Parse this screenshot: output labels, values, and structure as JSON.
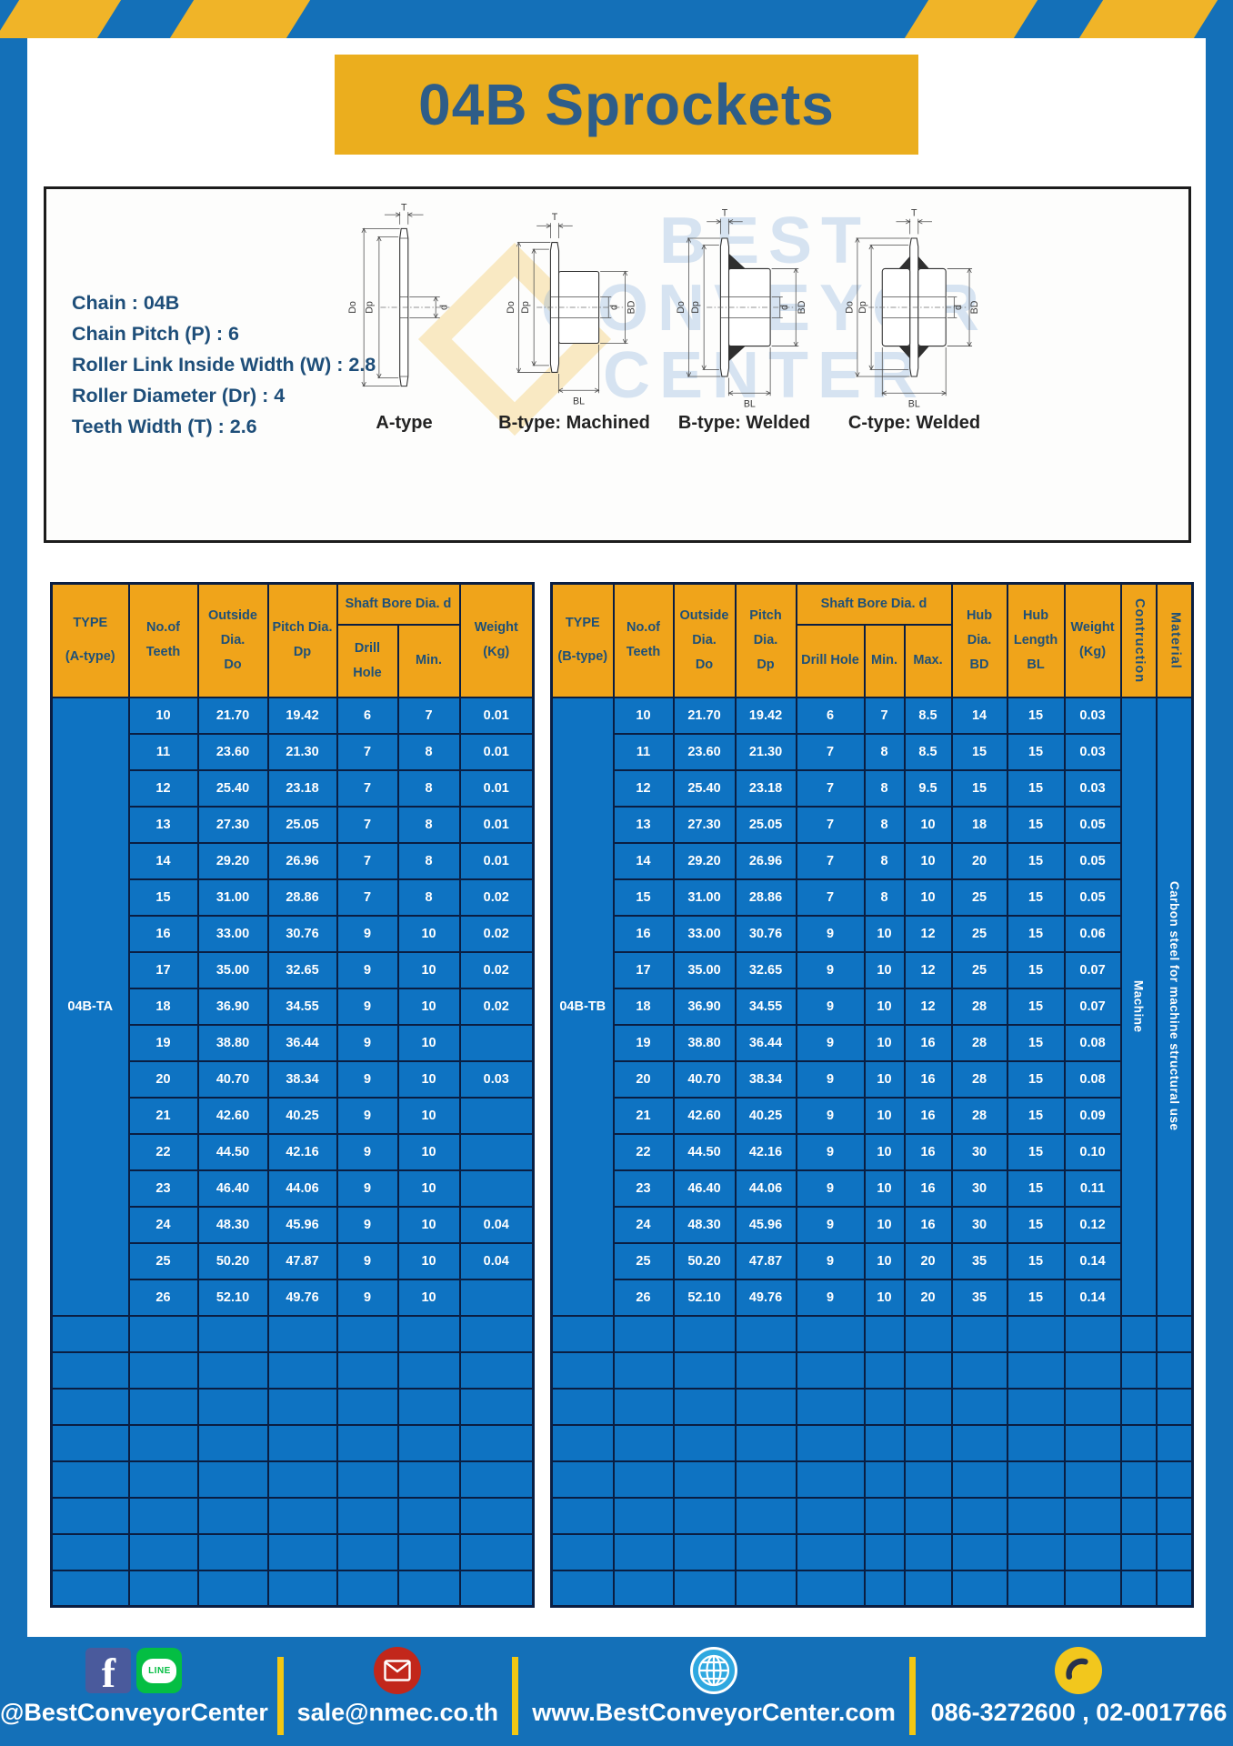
{
  "page": {
    "title": "04B Sprockets"
  },
  "specs": {
    "lines": "Chain  : 04B\nChain Pitch (P)  :  6\nRoller Link Inside Width (W)  :  2.8\nRoller Diameter (Dr)  : 4\nTeeth Width (T)  :  2.6"
  },
  "diagram": {
    "captions": {
      "a": "A-type",
      "bm": "B-type: Machined",
      "bw": "B-type: Welded",
      "cw": "C-type: Welded"
    },
    "dim_labels": {
      "t": "T",
      "do": "Do",
      "dp": "Dp",
      "d": "d",
      "bd": "BD",
      "bl": "BL"
    },
    "watermark": "BEST\nCONVEYOR\nCENTER"
  },
  "tables": {
    "a": {
      "type_header": "TYPE\n(A-type)",
      "type_value": "04B-TA",
      "headers": {
        "teeth": "No.of\nTeeth",
        "outside": "Outside\nDia.\nDo",
        "pitch": "Pitch Dia.\nDp",
        "shaft_bore": "Shaft Bore Dia. d",
        "drill": "Drill Hole",
        "min": "Min.",
        "weight": "Weight\n(Kg)"
      },
      "rows": [
        [
          "10",
          "21.70",
          "19.42",
          "6",
          "7",
          "0.01"
        ],
        [
          "11",
          "23.60",
          "21.30",
          "7",
          "8",
          "0.01"
        ],
        [
          "12",
          "25.40",
          "23.18",
          "7",
          "8",
          "0.01"
        ],
        [
          "13",
          "27.30",
          "25.05",
          "7",
          "8",
          "0.01"
        ],
        [
          "14",
          "29.20",
          "26.96",
          "7",
          "8",
          "0.01"
        ],
        [
          "15",
          "31.00",
          "28.86",
          "7",
          "8",
          "0.02"
        ],
        [
          "16",
          "33.00",
          "30.76",
          "9",
          "10",
          "0.02"
        ],
        [
          "17",
          "35.00",
          "32.65",
          "9",
          "10",
          "0.02"
        ],
        [
          "18",
          "36.90",
          "34.55",
          "9",
          "10",
          "0.02"
        ],
        [
          "19",
          "38.80",
          "36.44",
          "9",
          "10",
          ""
        ],
        [
          "20",
          "40.70",
          "38.34",
          "9",
          "10",
          "0.03"
        ],
        [
          "21",
          "42.60",
          "40.25",
          "9",
          "10",
          ""
        ],
        [
          "22",
          "44.50",
          "42.16",
          "9",
          "10",
          ""
        ],
        [
          "23",
          "46.40",
          "44.06",
          "9",
          "10",
          ""
        ],
        [
          "24",
          "48.30",
          "45.96",
          "9",
          "10",
          "0.04"
        ],
        [
          "25",
          "50.20",
          "47.87",
          "9",
          "10",
          "0.04"
        ],
        [
          "26",
          "52.10",
          "49.76",
          "9",
          "10",
          ""
        ]
      ],
      "empty_row_count": 8
    },
    "b": {
      "type_header": "TYPE\n(B-type)",
      "type_value": "04B-TB",
      "headers": {
        "teeth": "No.of\nTeeth",
        "outside": "Outside\nDia.\nDo",
        "pitch": "Pitch Dia.\nDp",
        "shaft_bore": "Shaft Bore Dia. d",
        "drill": "Drill Hole",
        "min": "Min.",
        "max": "Max.",
        "hub_dia": "Hub Dia.\nBD",
        "hub_len": "Hub\nLength\nBL",
        "weight": "Weight\n(Kg)",
        "construction": "Contruction",
        "material": "Material"
      },
      "construction_value": "Machine",
      "material_value": "Carbon steel for machine structural use",
      "rows": [
        [
          "10",
          "21.70",
          "19.42",
          "6",
          "7",
          "8.5",
          "14",
          "15",
          "0.03"
        ],
        [
          "11",
          "23.60",
          "21.30",
          "7",
          "8",
          "8.5",
          "15",
          "15",
          "0.03"
        ],
        [
          "12",
          "25.40",
          "23.18",
          "7",
          "8",
          "9.5",
          "15",
          "15",
          "0.03"
        ],
        [
          "13",
          "27.30",
          "25.05",
          "7",
          "8",
          "10",
          "18",
          "15",
          "0.05"
        ],
        [
          "14",
          "29.20",
          "26.96",
          "7",
          "8",
          "10",
          "20",
          "15",
          "0.05"
        ],
        [
          "15",
          "31.00",
          "28.86",
          "7",
          "8",
          "10",
          "25",
          "15",
          "0.05"
        ],
        [
          "16",
          "33.00",
          "30.76",
          "9",
          "10",
          "12",
          "25",
          "15",
          "0.06"
        ],
        [
          "17",
          "35.00",
          "32.65",
          "9",
          "10",
          "12",
          "25",
          "15",
          "0.07"
        ],
        [
          "18",
          "36.90",
          "34.55",
          "9",
          "10",
          "12",
          "28",
          "15",
          "0.07"
        ],
        [
          "19",
          "38.80",
          "36.44",
          "9",
          "10",
          "16",
          "28",
          "15",
          "0.08"
        ],
        [
          "20",
          "40.70",
          "38.34",
          "9",
          "10",
          "16",
          "28",
          "15",
          "0.08"
        ],
        [
          "21",
          "42.60",
          "40.25",
          "9",
          "10",
          "16",
          "28",
          "15",
          "0.09"
        ],
        [
          "22",
          "44.50",
          "42.16",
          "9",
          "10",
          "16",
          "30",
          "15",
          "0.10"
        ],
        [
          "23",
          "46.40",
          "44.06",
          "9",
          "10",
          "16",
          "30",
          "15",
          "0.11"
        ],
        [
          "24",
          "48.30",
          "45.96",
          "9",
          "10",
          "16",
          "30",
          "15",
          "0.12"
        ],
        [
          "25",
          "50.20",
          "47.87",
          "9",
          "10",
          "20",
          "35",
          "15",
          "0.14"
        ],
        [
          "26",
          "52.10",
          "49.76",
          "9",
          "10",
          "20",
          "35",
          "15",
          "0.14"
        ]
      ],
      "empty_row_count": 8
    }
  },
  "footer": {
    "social_handle": "@BestConveyorCenter",
    "line_label": "LINE",
    "email": "sale@nmec.co.th",
    "website": "www.BestConveyorCenter.com",
    "phones": "086-3272600 , 02-0017766"
  },
  "colors": {
    "frame_blue": "#1470B8",
    "stripe_yellow": "#F0B428",
    "header_gold": "#F0A41A",
    "cell_blue": "#0E73C2",
    "grid_navy": "#0A1E42",
    "title_blue": "#2E5D88",
    "spec_blue": "#1E4E79"
  }
}
